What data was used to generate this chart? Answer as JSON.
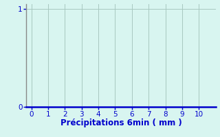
{
  "title": "",
  "xlabel": "Précipitations 6min ( mm )",
  "ylabel": "",
  "xlim": [
    -0.3,
    11
  ],
  "ylim": [
    0,
    1.05
  ],
  "xticks": [
    0,
    1,
    2,
    3,
    4,
    5,
    6,
    7,
    8,
    9,
    10
  ],
  "yticks": [
    0,
    1
  ],
  "background_color": "#d8f5f0",
  "plot_bg_color": "#d8f5f0",
  "grid_color": "#a8c8c0",
  "axis_color_bottom": "#0000cc",
  "axis_color_left": "#888888",
  "tick_label_color": "#0000cc",
  "xlabel_color": "#0000cc",
  "xlabel_fontsize": 8.5,
  "tick_fontsize": 7.5
}
